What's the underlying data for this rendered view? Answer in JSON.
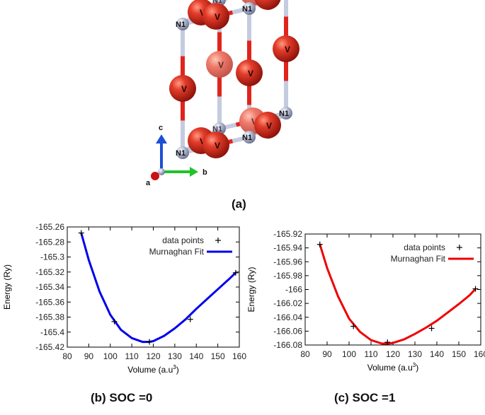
{
  "figure": {
    "caption_a": "(a)",
    "caption_b": "(b) SOC =0",
    "caption_c": "(c) SOC =1"
  },
  "crystal": {
    "atom_labels": {
      "vanadium": "V",
      "nitrogen": "N1"
    },
    "axes_labels": {
      "a": "a",
      "b": "b",
      "c": "c"
    },
    "colors": {
      "vanadium": "#d93224",
      "nitrogen": "#a7adc8",
      "bond_red": "#e0241c",
      "bond_blue": "#c5cbe0",
      "axis_c": "#1d4fd6",
      "axis_b": "#22c22a",
      "axis_a": "#cc1111"
    }
  },
  "chart_data": [
    {
      "type": "line",
      "xlabel": "Volume (a.u",
      "xlabel_sup": "3",
      "xlabel_end": ")",
      "ylabel": "Energy (Ry)",
      "xlim": [
        80,
        160
      ],
      "ylim": [
        -165.42,
        -165.26
      ],
      "xticks": [
        80,
        90,
        100,
        110,
        120,
        130,
        140,
        150,
        160
      ],
      "xtick_labels": [
        "80",
        "90",
        "100",
        "110",
        "120",
        "130",
        "140",
        "150",
        "160"
      ],
      "yticks": [
        -165.26,
        -165.28,
        -165.3,
        -165.32,
        -165.34,
        -165.36,
        -165.38,
        -165.4,
        -165.42
      ],
      "ytick_labels": [
        "-165.26",
        "-165.28",
        "-165.3",
        "-165.32",
        "-165.34",
        "-165.36",
        "-165.38",
        "-165.4",
        "-165.42"
      ],
      "legend_position": "top-right",
      "series": [
        {
          "name": "data points",
          "style": "markers",
          "color": "#000000",
          "x": [
            86.5,
            101.9,
            118.2,
            137.2,
            158.3
          ],
          "y": [
            -165.268,
            -165.386,
            -165.413,
            -165.383,
            -165.321
          ]
        },
        {
          "name": "Murnaghan Fit",
          "style": "line",
          "color": "#0000ee",
          "x": [
            86.5,
            90,
            95,
            100,
            105,
            110,
            115,
            118,
            120,
            125,
            130,
            135,
            140,
            145,
            150,
            155,
            158.3
          ],
          "y": [
            -165.268,
            -165.304,
            -165.346,
            -165.377,
            -165.397,
            -165.408,
            -165.413,
            -165.413,
            -165.412,
            -165.405,
            -165.395,
            -165.383,
            -165.369,
            -165.356,
            -165.343,
            -165.33,
            -165.321
          ]
        }
      ]
    },
    {
      "type": "line",
      "xlabel": "Volume (a.u",
      "xlabel_sup": "3",
      "xlabel_end": ")",
      "ylabel": "Energy (Ry)",
      "xlim": [
        80,
        160
      ],
      "ylim": [
        -166.08,
        -165.92
      ],
      "xticks": [
        80,
        90,
        100,
        110,
        120,
        130,
        140,
        150,
        160
      ],
      "xtick_labels": [
        "80",
        "90",
        "100",
        "110",
        "120",
        "130",
        "140",
        "150",
        "160"
      ],
      "yticks": [
        -165.92,
        -165.94,
        -165.96,
        -165.98,
        -166,
        -166.02,
        -166.04,
        -166.06,
        -166.08
      ],
      "ytick_labels": [
        "-165.92",
        "-165.94",
        "-165.96",
        "-165.98",
        "-166",
        "-166.02",
        "-166.04",
        "-166.06",
        "-166.08"
      ],
      "legend_position": "top-right",
      "series": [
        {
          "name": "data points",
          "style": "markers",
          "color": "#000000",
          "x": [
            86.7,
            102.0,
            117.5,
            137.6,
            157.6
          ],
          "y": [
            -165.935,
            -166.053,
            -166.076,
            -166.056,
            -165.999
          ]
        },
        {
          "name": "Murnaghan Fit",
          "style": "line",
          "color": "#ee0000",
          "x": [
            86.7,
            90,
            95,
            100,
            105,
            110,
            115,
            118,
            120,
            125,
            130,
            135,
            140,
            145,
            150,
            155,
            157.6
          ],
          "y": [
            -165.935,
            -165.969,
            -166.01,
            -166.042,
            -166.061,
            -166.073,
            -166.078,
            -166.078,
            -166.077,
            -166.072,
            -166.064,
            -166.055,
            -166.045,
            -166.033,
            -166.021,
            -166.008,
            -165.999
          ]
        }
      ]
    }
  ]
}
